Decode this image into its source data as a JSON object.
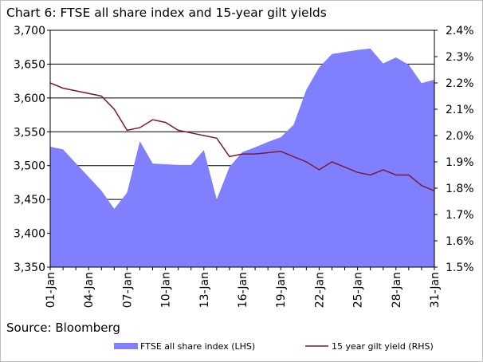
{
  "title": "Chart 6: FTSE all share index and 15-year gilt yields",
  "source": "Source: Bloomberg",
  "chart_data": {
    "type": "area+line",
    "x": [
      1,
      2,
      3,
      4,
      5,
      6,
      7,
      8,
      9,
      10,
      11,
      12,
      13,
      14,
      15,
      16,
      17,
      18,
      19,
      20,
      21,
      22,
      23,
      24,
      25,
      26,
      27,
      28,
      29,
      30,
      31
    ],
    "x_tick_values": [
      1,
      4,
      7,
      10,
      13,
      16,
      19,
      22,
      25,
      28,
      31
    ],
    "x_tick_labels": [
      "01-Jan",
      "04-Jan",
      "07-Jan",
      "10-Jan",
      "13-Jan",
      "16-Jan",
      "19-Jan",
      "22-Jan",
      "25-Jan",
      "28-Jan",
      "31-Jan"
    ],
    "xlim": [
      1,
      31
    ],
    "y_left": {
      "lim": [
        3350,
        3700
      ],
      "ticks": [
        3350,
        3400,
        3450,
        3500,
        3550,
        3600,
        3650,
        3700
      ],
      "tick_labels": [
        "3,350",
        "3,400",
        "3,450",
        "3,500",
        "3,550",
        "3,600",
        "3,650",
        "3,700"
      ]
    },
    "y_right": {
      "lim": [
        1.5,
        2.4
      ],
      "ticks": [
        1.5,
        1.6,
        1.7,
        1.8,
        1.9,
        2.0,
        2.1,
        2.2,
        2.3,
        2.4
      ],
      "tick_labels": [
        "1.5%",
        "1.6%",
        "1.7%",
        "1.8%",
        "1.9%",
        "2.0%",
        "2.1%",
        "2.2%",
        "2.3%",
        "2.4%"
      ]
    },
    "series": [
      {
        "name": "FTSE all share index (LHS)",
        "kind": "area",
        "axis": "left",
        "color": "#8080ff",
        "points": [
          [
            1,
            3528
          ],
          [
            2,
            3524
          ],
          [
            5,
            3463
          ],
          [
            6,
            3436
          ],
          [
            7,
            3460
          ],
          [
            8,
            3536
          ],
          [
            9,
            3503
          ],
          [
            10,
            3502
          ],
          [
            11,
            3501
          ],
          [
            12,
            3501
          ],
          [
            13,
            3523
          ],
          [
            14,
            3450
          ],
          [
            15,
            3498
          ],
          [
            16,
            3520
          ],
          [
            17,
            3527
          ],
          [
            18,
            3535
          ],
          [
            19,
            3542
          ],
          [
            20,
            3560
          ],
          [
            21,
            3612
          ],
          [
            22,
            3645
          ],
          [
            23,
            3665
          ],
          [
            25,
            3671
          ],
          [
            26,
            3673
          ],
          [
            27,
            3651
          ],
          [
            28,
            3660
          ],
          [
            29,
            3649
          ],
          [
            30,
            3622
          ],
          [
            31,
            3627
          ]
        ]
      },
      {
        "name": "15 year gilt yield (RHS)",
        "kind": "line",
        "axis": "right",
        "color": "#7a1a3a",
        "points": [
          [
            1,
            2.2
          ],
          [
            2,
            2.18
          ],
          [
            5,
            2.15
          ],
          [
            6,
            2.1
          ],
          [
            7,
            2.02
          ],
          [
            8,
            2.03
          ],
          [
            9,
            2.06
          ],
          [
            10,
            2.05
          ],
          [
            11,
            2.02
          ],
          [
            12,
            2.01
          ],
          [
            13,
            2.0
          ],
          [
            14,
            1.99
          ],
          [
            15,
            1.92
          ],
          [
            16,
            1.93
          ],
          [
            17,
            1.93
          ],
          [
            18,
            1.935
          ],
          [
            19,
            1.94
          ],
          [
            20,
            1.92
          ],
          [
            21,
            1.9
          ],
          [
            22,
            1.87
          ],
          [
            23,
            1.9
          ],
          [
            24,
            1.88
          ],
          [
            25,
            1.86
          ],
          [
            26,
            1.85
          ],
          [
            27,
            1.87
          ],
          [
            28,
            1.85
          ],
          [
            29,
            1.85
          ],
          [
            30,
            1.81
          ],
          [
            31,
            1.79
          ]
        ]
      }
    ],
    "grid": "horizontal",
    "legend_position": "bottom"
  }
}
